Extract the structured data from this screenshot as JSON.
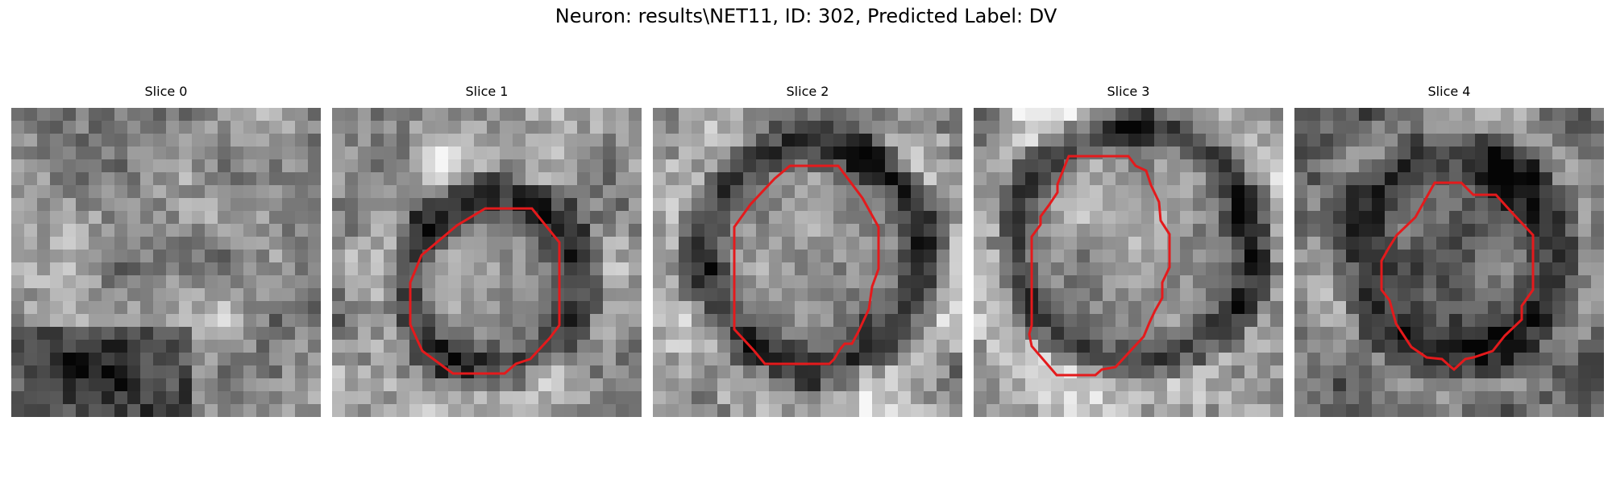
{
  "figure": {
    "title": "Neuron: results\\NET11, ID: 302, Predicted Label: DV"
  },
  "colors": {
    "contour": "#e41a1c",
    "background": "#ffffff"
  },
  "slices": [
    {
      "title": "Slice 0",
      "has_contour": false
    },
    {
      "title": "Slice 1",
      "has_contour": true
    },
    {
      "title": "Slice 2",
      "has_contour": true
    },
    {
      "title": "Slice 3",
      "has_contour": true
    },
    {
      "title": "Slice 4",
      "has_contour": true
    }
  ]
}
